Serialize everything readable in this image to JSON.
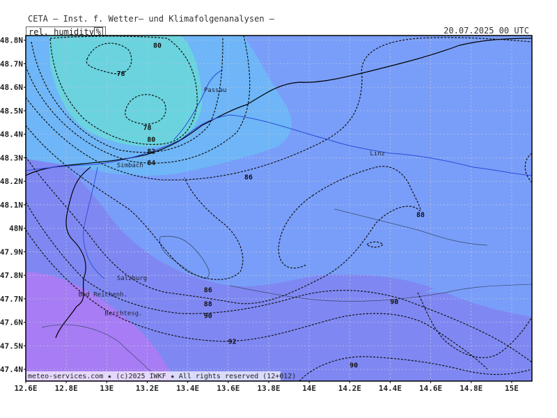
{
  "header": {
    "title": "CETA — Inst. f. Wetter— und Klimafolgenanalysen —",
    "parameter": "rel._humidity",
    "unit": "%",
    "valid_time": "20.07.2025 00 UTC"
  },
  "map": {
    "field": "relative humidity",
    "lat_range": [
      47.35,
      48.82
    ],
    "lon_range": [
      12.6,
      15.1
    ],
    "grid": true,
    "lat_ticks": [
      "48.8N",
      "48.7N",
      "48.6N",
      "48.5N",
      "48.4N",
      "48.3N",
      "48.2N",
      "48.1N",
      "48N",
      "47.9N",
      "47.8N",
      "47.7N",
      "47.6N",
      "47.5N",
      "47.4N"
    ],
    "lon_ticks": [
      "12.6E",
      "12.8E",
      "13E",
      "13.2E",
      "13.4E",
      "13.6E",
      "13.8E",
      "14E",
      "14.2E",
      "14.4E",
      "14.6E",
      "14.8E",
      "15E"
    ],
    "fill_colors": {
      "purple": "#a87cf4",
      "violet": "#7f88f2",
      "blue": "#799ef9",
      "lightblue": "#6eb6f7",
      "cyan": "#6ad3de"
    },
    "contour_labels": [
      {
        "text": "80",
        "lon": 13.25,
        "lat": 48.78
      },
      {
        "text": "78",
        "lon": 13.07,
        "lat": 48.66
      },
      {
        "text": "78",
        "lon": 13.2,
        "lat": 48.43
      },
      {
        "text": "80",
        "lon": 13.22,
        "lat": 48.38
      },
      {
        "text": "82",
        "lon": 13.22,
        "lat": 48.33
      },
      {
        "text": "84",
        "lon": 13.22,
        "lat": 48.28
      },
      {
        "text": "86",
        "lon": 13.7,
        "lat": 48.22
      },
      {
        "text": "88",
        "lon": 14.55,
        "lat": 48.06
      },
      {
        "text": "86",
        "lon": 13.5,
        "lat": 47.74
      },
      {
        "text": "88",
        "lon": 13.5,
        "lat": 47.68
      },
      {
        "text": "90",
        "lon": 13.5,
        "lat": 47.63
      },
      {
        "text": "90",
        "lon": 14.42,
        "lat": 47.69
      },
      {
        "text": "92",
        "lon": 13.62,
        "lat": 47.52
      },
      {
        "text": "90",
        "lon": 14.22,
        "lat": 47.42
      }
    ],
    "cities": [
      {
        "name": "Passau",
        "lon": 13.48,
        "lat": 48.58
      },
      {
        "name": "Linz",
        "lon": 14.3,
        "lat": 48.31
      },
      {
        "name": "Simbach",
        "lon": 13.05,
        "lat": 48.26
      },
      {
        "name": "Salzburg",
        "lon": 13.05,
        "lat": 47.78
      },
      {
        "name": "Bad Reichenh.",
        "lon": 12.86,
        "lat": 47.71
      },
      {
        "name": "Berchtesg.",
        "lon": 12.99,
        "lat": 47.63
      }
    ]
  },
  "footer": {
    "copyright": "meteo-services.com ★ (c)2025 IWKF ★ All rights reserved (12+012)"
  }
}
